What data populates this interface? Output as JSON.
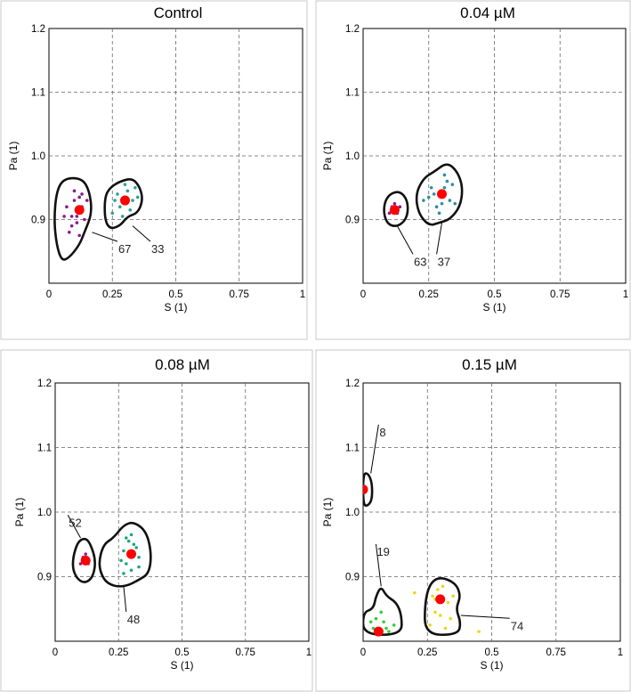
{
  "chart_data": [
    {
      "type": "scatter",
      "title": "Control",
      "xlabel": "S (1)",
      "ylabel": "Pa (1)",
      "xlim": [
        0,
        1
      ],
      "ylim": [
        0.8,
        1.2
      ],
      "xticks": [
        "0",
        "0.25",
        "0.5",
        "0.75",
        "1"
      ],
      "yticks": [
        "0.9",
        "1.0",
        "1.1",
        "1.2"
      ],
      "grid": true,
      "populations": [
        {
          "label": "67",
          "center": [
            0.12,
            0.915
          ],
          "center_color": "#ff0000",
          "dot_color": "#8b1a8b",
          "gate": [
            [
              0.06,
              0.965
            ],
            [
              0.13,
              0.965
            ],
            [
              0.16,
              0.945
            ],
            [
              0.17,
              0.91
            ],
            [
              0.14,
              0.88
            ],
            [
              0.12,
              0.86
            ],
            [
              0.08,
              0.84
            ],
            [
              0.05,
              0.835
            ],
            [
              0.03,
              0.86
            ],
            [
              0.02,
              0.9
            ],
            [
              0.03,
              0.945
            ]
          ],
          "points": [
            [
              0.1,
              0.93
            ],
            [
              0.13,
              0.92
            ],
            [
              0.09,
              0.905
            ],
            [
              0.14,
              0.9
            ],
            [
              0.11,
              0.895
            ],
            [
              0.08,
              0.88
            ],
            [
              0.12,
              0.875
            ],
            [
              0.07,
              0.92
            ],
            [
              0.15,
              0.93
            ],
            [
              0.1,
              0.945
            ],
            [
              0.13,
              0.94
            ],
            [
              0.11,
              0.905
            ],
            [
              0.09,
              0.89
            ],
            [
              0.06,
              0.905
            ],
            [
              0.12,
              0.935
            ]
          ]
        },
        {
          "label": "33",
          "center": [
            0.3,
            0.93
          ],
          "center_color": "#ff0000",
          "dot_color": "#2aa198",
          "gate": [
            [
              0.22,
              0.935
            ],
            [
              0.24,
              0.95
            ],
            [
              0.28,
              0.96
            ],
            [
              0.33,
              0.965
            ],
            [
              0.36,
              0.95
            ],
            [
              0.37,
              0.93
            ],
            [
              0.35,
              0.91
            ],
            [
              0.31,
              0.905
            ],
            [
              0.28,
              0.89
            ],
            [
              0.24,
              0.885
            ],
            [
              0.22,
              0.9
            ]
          ],
          "points": [
            [
              0.27,
              0.94
            ],
            [
              0.31,
              0.945
            ],
            [
              0.33,
              0.93
            ],
            [
              0.28,
              0.92
            ],
            [
              0.25,
              0.91
            ],
            [
              0.34,
              0.95
            ],
            [
              0.29,
              0.905
            ],
            [
              0.32,
              0.915
            ],
            [
              0.26,
              0.93
            ],
            [
              0.35,
              0.935
            ],
            [
              0.3,
              0.955
            ]
          ]
        }
      ],
      "annotations": [
        {
          "text": "67",
          "at": [
            0.27,
            0.86
          ],
          "to": [
            0.17,
            0.88
          ]
        },
        {
          "text": "33",
          "at": [
            0.4,
            0.86
          ],
          "to": [
            0.33,
            0.89
          ]
        }
      ]
    },
    {
      "type": "scatter",
      "title": "0.04 µM",
      "xlabel": "S (1)",
      "ylabel": "Pa (1)",
      "xlim": [
        0,
        1
      ],
      "ylim": [
        0.8,
        1.2
      ],
      "xticks": [
        "0",
        "0.25",
        "0.5",
        "0.75",
        "1"
      ],
      "yticks": [
        "0.9",
        "1.0",
        "1.1",
        "1.2"
      ],
      "grid": true,
      "populations": [
        {
          "label": "63",
          "center": [
            0.12,
            0.915
          ],
          "center_color": "#ff0000",
          "dot_color": "#8b1a8b",
          "gate": [
            [
              0.08,
              0.925
            ],
            [
              0.1,
              0.94
            ],
            [
              0.14,
              0.945
            ],
            [
              0.17,
              0.93
            ],
            [
              0.17,
              0.905
            ],
            [
              0.14,
              0.89
            ],
            [
              0.1,
              0.89
            ],
            [
              0.08,
              0.905
            ]
          ],
          "points": [
            [
              0.11,
              0.92
            ],
            [
              0.13,
              0.91
            ],
            [
              0.12,
              0.925
            ],
            [
              0.14,
              0.92
            ],
            [
              0.1,
              0.91
            ]
          ]
        },
        {
          "label": "37",
          "center": [
            0.3,
            0.94
          ],
          "center_color": "#ff0000",
          "dot_color": "#2a8fa1",
          "gate": [
            [
              0.2,
              0.94
            ],
            [
              0.23,
              0.965
            ],
            [
              0.27,
              0.975
            ],
            [
              0.32,
              0.99
            ],
            [
              0.36,
              0.975
            ],
            [
              0.38,
              0.95
            ],
            [
              0.37,
              0.92
            ],
            [
              0.33,
              0.9
            ],
            [
              0.29,
              0.895
            ],
            [
              0.25,
              0.89
            ],
            [
              0.21,
              0.91
            ]
          ],
          "points": [
            [
              0.27,
              0.94
            ],
            [
              0.31,
              0.95
            ],
            [
              0.33,
              0.93
            ],
            [
              0.28,
              0.92
            ],
            [
              0.25,
              0.935
            ],
            [
              0.34,
              0.955
            ],
            [
              0.29,
              0.91
            ],
            [
              0.32,
              0.96
            ],
            [
              0.26,
              0.95
            ],
            [
              0.35,
              0.925
            ],
            [
              0.3,
              0.925
            ],
            [
              0.31,
              0.97
            ],
            [
              0.23,
              0.93
            ]
          ]
        }
      ],
      "annotations": [
        {
          "text": "63",
          "at": [
            0.19,
            0.84
          ],
          "to": [
            0.13,
            0.89
          ]
        },
        {
          "text": "37",
          "at": [
            0.28,
            0.84
          ],
          "to": [
            0.3,
            0.895
          ]
        }
      ]
    },
    {
      "type": "scatter",
      "title": "0.08 µM",
      "xlabel": "S (1)",
      "ylabel": "Pa (1)",
      "xlim": [
        0,
        1
      ],
      "ylim": [
        0.8,
        1.2
      ],
      "xticks": [
        "0",
        "0.25",
        "0.5",
        "0.75",
        "1"
      ],
      "yticks": [
        "0.9",
        "1.0",
        "1.1",
        "1.2"
      ],
      "grid": true,
      "populations": [
        {
          "label": "52",
          "center": [
            0.12,
            0.925
          ],
          "center_color": "#ff0000",
          "dot_color": "#8b1a8b",
          "gate": [
            [
              0.07,
              0.93
            ],
            [
              0.09,
              0.955
            ],
            [
              0.12,
              0.96
            ],
            [
              0.14,
              0.95
            ],
            [
              0.16,
              0.925
            ],
            [
              0.15,
              0.9
            ],
            [
              0.12,
              0.89
            ],
            [
              0.09,
              0.895
            ],
            [
              0.07,
              0.91
            ]
          ],
          "points": [
            [
              0.11,
              0.93
            ],
            [
              0.13,
              0.92
            ],
            [
              0.12,
              0.935
            ],
            [
              0.1,
              0.92
            ]
          ]
        },
        {
          "label": "48",
          "center": [
            0.3,
            0.935
          ],
          "center_color": "#ff0000",
          "dot_color": "#1aa77a",
          "gate": [
            [
              0.17,
              0.92
            ],
            [
              0.19,
              0.95
            ],
            [
              0.23,
              0.96
            ],
            [
              0.27,
              0.98
            ],
            [
              0.31,
              0.985
            ],
            [
              0.36,
              0.97
            ],
            [
              0.38,
              0.935
            ],
            [
              0.37,
              0.905
            ],
            [
              0.33,
              0.895
            ],
            [
              0.28,
              0.885
            ],
            [
              0.23,
              0.885
            ],
            [
              0.19,
              0.895
            ]
          ],
          "points": [
            [
              0.27,
              0.94
            ],
            [
              0.31,
              0.95
            ],
            [
              0.33,
              0.93
            ],
            [
              0.28,
              0.92
            ],
            [
              0.29,
              0.955
            ],
            [
              0.3,
              0.91
            ],
            [
              0.32,
              0.945
            ],
            [
              0.26,
              0.925
            ],
            [
              0.27,
              0.905
            ],
            [
              0.3,
              0.965
            ],
            [
              0.33,
              0.915
            ],
            [
              0.28,
              0.96
            ]
          ]
        }
      ],
      "annotations": [
        {
          "text": "52",
          "at": [
            0.05,
            0.99
          ],
          "to": [
            0.1,
            0.96
          ]
        },
        {
          "text": "48",
          "at": [
            0.28,
            0.84
          ],
          "to": [
            0.27,
            0.885
          ]
        }
      ]
    },
    {
      "type": "scatter",
      "title": "0.15 µM",
      "xlabel": "S (1)",
      "ylabel": "Pa (1)",
      "xlim": [
        0,
        1
      ],
      "ylim": [
        0.8,
        1.2
      ],
      "xticks": [
        "0",
        "0.25",
        "0.5",
        "0.75",
        "1"
      ],
      "yticks": [
        "0.9",
        "1.0",
        "1.1",
        "1.2"
      ],
      "grid": true,
      "populations": [
        {
          "label": "8",
          "center": [
            0.0,
            1.035
          ],
          "center_color": "#ff0000",
          "dot_color": "#1a7a1a",
          "gate": [
            [
              0.0,
              1.06
            ],
            [
              0.02,
              1.06
            ],
            [
              0.035,
              1.045
            ],
            [
              0.035,
              1.02
            ],
            [
              0.02,
              1.01
            ],
            [
              0.0,
              1.01
            ]
          ],
          "points": []
        },
        {
          "label": "19",
          "center": [
            0.06,
            0.815
          ],
          "center_color": "#ff0000",
          "dot_color": "#33cc33",
          "gate": [
            [
              0.0,
              0.81
            ],
            [
              0.0,
              0.845
            ],
            [
              0.04,
              0.85
            ],
            [
              0.05,
              0.87
            ],
            [
              0.07,
              0.885
            ],
            [
              0.09,
              0.87
            ],
            [
              0.13,
              0.86
            ],
            [
              0.15,
              0.84
            ],
            [
              0.15,
              0.81
            ]
          ],
          "points": [
            [
              0.04,
              0.82
            ],
            [
              0.08,
              0.83
            ],
            [
              0.1,
              0.815
            ],
            [
              0.03,
              0.83
            ],
            [
              0.07,
              0.845
            ],
            [
              0.12,
              0.825
            ],
            [
              0.05,
              0.835
            ],
            [
              0.09,
              0.82
            ]
          ]
        },
        {
          "label": "74",
          "center": [
            0.3,
            0.865
          ],
          "center_color": "#ff0000",
          "dot_color": "#e6d81a",
          "gate": [
            [
              0.24,
              0.81
            ],
            [
              0.24,
              0.86
            ],
            [
              0.26,
              0.89
            ],
            [
              0.3,
              0.9
            ],
            [
              0.36,
              0.89
            ],
            [
              0.38,
              0.87
            ],
            [
              0.36,
              0.85
            ],
            [
              0.38,
              0.83
            ],
            [
              0.37,
              0.81
            ]
          ],
          "points": [
            [
              0.27,
              0.87
            ],
            [
              0.31,
              0.885
            ],
            [
              0.33,
              0.86
            ],
            [
              0.28,
              0.845
            ],
            [
              0.29,
              0.88
            ],
            [
              0.34,
              0.835
            ],
            [
              0.26,
              0.825
            ],
            [
              0.32,
              0.82
            ],
            [
              0.35,
              0.87
            ],
            [
              0.28,
              0.865
            ],
            [
              0.3,
              0.84
            ],
            [
              0.2,
              0.875
            ],
            [
              0.45,
              0.815
            ]
          ]
        }
      ],
      "annotations": [
        {
          "text": "8",
          "at": [
            0.06,
            1.13
          ],
          "to": [
            0.03,
            1.06
          ]
        },
        {
          "text": "19",
          "at": [
            0.05,
            0.945
          ],
          "to": [
            0.07,
            0.885
          ]
        },
        {
          "text": "74",
          "at": [
            0.57,
            0.83
          ],
          "to": [
            0.38,
            0.84
          ]
        }
      ]
    }
  ]
}
